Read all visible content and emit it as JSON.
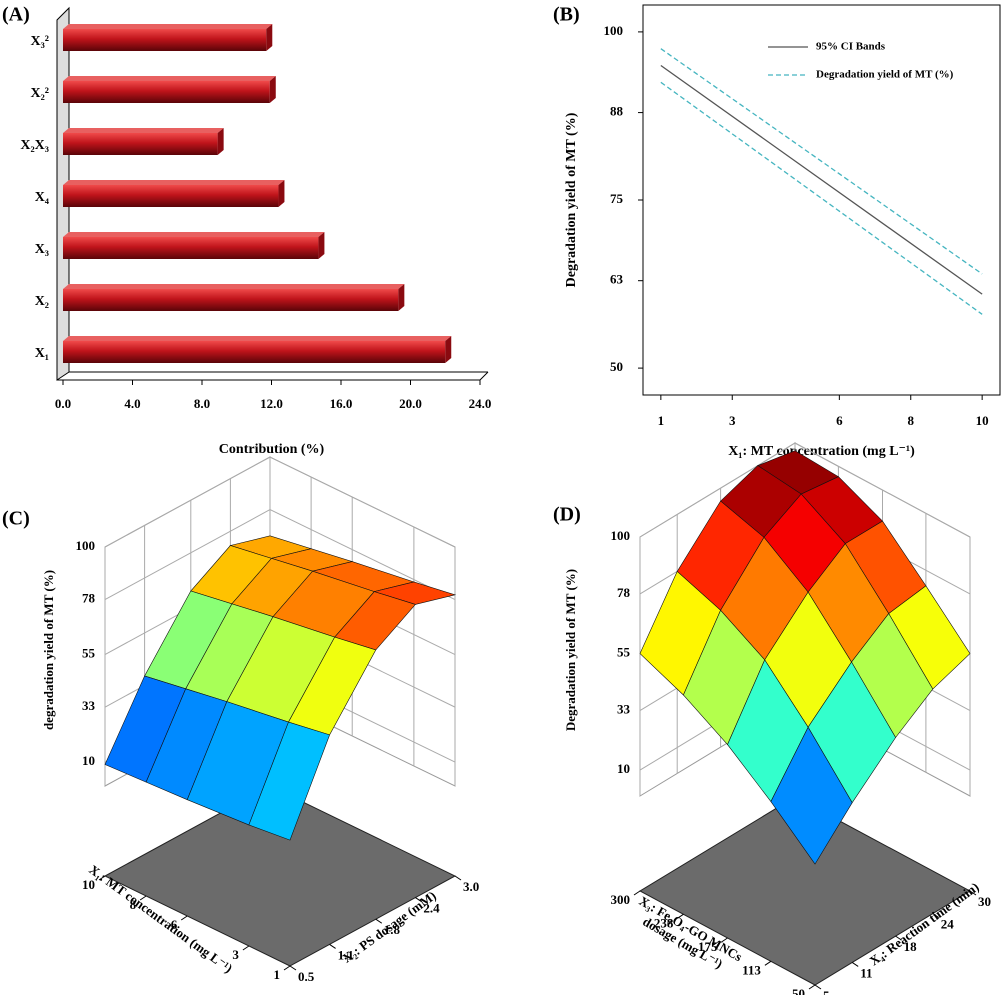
{
  "chart_data": [
    {
      "type": "bar",
      "orientation": "horizontal",
      "panel_label": "(A)",
      "categories": [
        "X₃²",
        "X₂²",
        "X₂X₃",
        "X₄",
        "X₃",
        "X₂",
        "X₁"
      ],
      "values": [
        11.7,
        11.9,
        8.9,
        12.4,
        14.7,
        19.3,
        22.0
      ],
      "color": "#c0141b",
      "xlabel": "Contribution  (%)",
      "xlim": [
        0,
        24
      ],
      "xticks": [
        {
          "value": 0,
          "label": "0.0"
        },
        {
          "value": 4,
          "label": "4.0"
        },
        {
          "value": 8,
          "label": "8.0"
        },
        {
          "value": 12,
          "label": "12.0"
        },
        {
          "value": 16,
          "label": "16.0"
        },
        {
          "value": 20,
          "label": "20.0"
        },
        {
          "value": 24,
          "label": "24.0"
        }
      ]
    },
    {
      "type": "line",
      "panel_label": "(B)",
      "x": [
        1,
        10
      ],
      "series": [
        {
          "name": "95% CI Bands",
          "color": "#555555",
          "values": [
            95,
            61
          ]
        },
        {
          "name": "Degradation  yield of MT (%)",
          "color": "#45b5c0",
          "dashed": true,
          "upper": [
            97.5,
            64
          ],
          "lower": [
            92.5,
            58
          ]
        }
      ],
      "xlabel": "X₁: MT concentration (mg L⁻¹)",
      "ylabel": "Degradation yield of MT (%)",
      "xlim": [
        0.5,
        10.5
      ],
      "ylim": [
        46,
        104
      ],
      "xticks": [
        1,
        3,
        6,
        8,
        10
      ],
      "yticks": [
        50,
        63,
        75,
        88,
        100
      ],
      "legend": "upper right"
    },
    {
      "type": "surface",
      "panel_label": "(C)",
      "colormap": "jet",
      "x": [
        1,
        3,
        6,
        8,
        10
      ],
      "y": [
        0.5,
        1.1,
        1.8,
        2.4,
        3
      ],
      "z": [
        [
          15,
          50,
          75,
          85,
          80
        ],
        [
          13,
          47,
          72,
          82,
          77
        ],
        [
          11,
          43,
          68,
          78,
          73
        ],
        [
          10,
          40,
          65,
          75,
          70
        ],
        [
          9,
          37,
          62,
          72,
          67
        ]
      ],
      "xlim": [
        1,
        10
      ],
      "ylim": [
        0.5,
        3
      ],
      "zlim": [
        0,
        100
      ],
      "xticks": [
        1,
        3,
        6,
        8,
        10
      ],
      "yticks": [
        0.5,
        1.1,
        1.8,
        2.4,
        {
          "value": 3,
          "label": "3.0"
        }
      ],
      "zticks": [
        10,
        33,
        55,
        78,
        100
      ],
      "xlabel": [
        "X₁: MT concentration  (mg L⁻¹)"
      ],
      "ylabel": "X₂: PS dosage (mM)",
      "zlabel": "degradation  yield of MT (%)"
    },
    {
      "type": "surface",
      "panel_label": "(D)",
      "colormap": "jet",
      "x": [
        50,
        113,
        175,
        238,
        300
      ],
      "y": [
        5,
        11,
        18,
        24,
        30
      ],
      "z": [
        [
          10,
          25,
          40,
          50,
          55
        ],
        [
          25,
          45,
          60,
          70,
          72
        ],
        [
          38,
          62,
          78,
          88,
          88
        ],
        [
          48,
          72,
          90,
          98,
          96
        ],
        [
          55,
          78,
          95,
          100,
          97
        ]
      ],
      "xlim": [
        50,
        300
      ],
      "ylim": [
        5,
        30
      ],
      "zlim": [
        0,
        100
      ],
      "xticks": [
        50,
        113,
        175,
        238,
        300
      ],
      "yticks": [
        5,
        11,
        18,
        24,
        30
      ],
      "zticks": [
        10,
        33,
        55,
        78,
        100
      ],
      "xlabel": [
        "X₃: Fe₃O₄-GO MNCs",
        "dosage (mg L⁻¹)"
      ],
      "ylabel": "X₄: Reaction time (min)",
      "zlabel": "Degradation yield of MT (%)"
    }
  ]
}
